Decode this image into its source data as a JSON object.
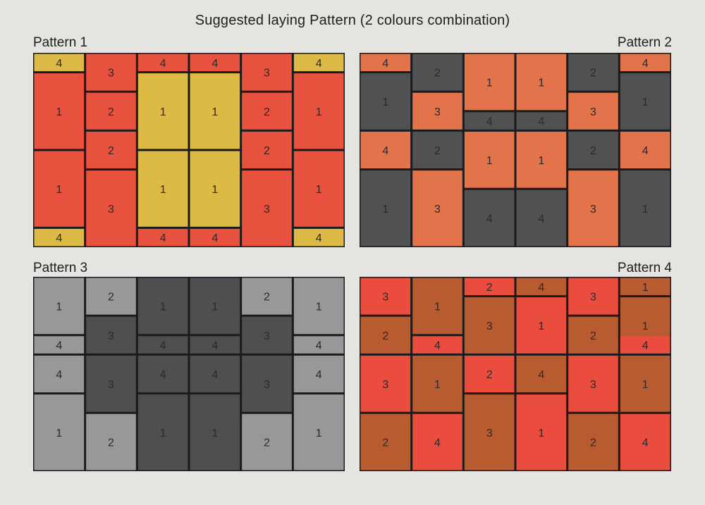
{
  "title": "Suggested laying Pattern (2 colours combination)",
  "colors": {
    "joint": "#1b1b1b",
    "red": "#e9513f",
    "yellow": "#dcba45",
    "orange": "#e2734a",
    "charcoal": "#4f5152",
    "light_grey": "#979899",
    "dark_grey": "#4e4f50",
    "rust": "#b85b31",
    "red_bright": "#ea4c3d"
  },
  "patterns": [
    {
      "label": "Pattern 1",
      "cells": [
        {
          "c": 0,
          "r": 0,
          "w": 1,
          "h": 1,
          "n": "4",
          "col": "yellow"
        },
        {
          "c": 0,
          "r": 1,
          "w": 1,
          "h": 4,
          "n": "1",
          "col": "red"
        },
        {
          "c": 0,
          "r": 5,
          "w": 1,
          "h": 4,
          "n": "1",
          "col": "red"
        },
        {
          "c": 0,
          "r": 9,
          "w": 1,
          "h": 1,
          "n": "4",
          "col": "yellow"
        },
        {
          "c": 1,
          "r": 0,
          "w": 1,
          "h": 2,
          "n": "3",
          "col": "red"
        },
        {
          "c": 1,
          "r": 2,
          "w": 1,
          "h": 2,
          "n": "2",
          "col": "red"
        },
        {
          "c": 1,
          "r": 4,
          "w": 1,
          "h": 2,
          "n": "2",
          "col": "red"
        },
        {
          "c": 1,
          "r": 6,
          "w": 1,
          "h": 4,
          "n": "3",
          "col": "red"
        },
        {
          "c": 2,
          "r": 0,
          "w": 1,
          "h": 1,
          "n": "4",
          "col": "red"
        },
        {
          "c": 2,
          "r": 1,
          "w": 1,
          "h": 4,
          "n": "1",
          "col": "yellow"
        },
        {
          "c": 2,
          "r": 5,
          "w": 1,
          "h": 4,
          "n": "1",
          "col": "yellow"
        },
        {
          "c": 2,
          "r": 9,
          "w": 1,
          "h": 1,
          "n": "4",
          "col": "red"
        },
        {
          "c": 3,
          "r": 0,
          "w": 1,
          "h": 1,
          "n": "4",
          "col": "red"
        },
        {
          "c": 3,
          "r": 1,
          "w": 1,
          "h": 4,
          "n": "1",
          "col": "yellow"
        },
        {
          "c": 3,
          "r": 5,
          "w": 1,
          "h": 4,
          "n": "1",
          "col": "yellow"
        },
        {
          "c": 3,
          "r": 9,
          "w": 1,
          "h": 1,
          "n": "4",
          "col": "red"
        },
        {
          "c": 4,
          "r": 0,
          "w": 1,
          "h": 2,
          "n": "3",
          "col": "red"
        },
        {
          "c": 4,
          "r": 2,
          "w": 1,
          "h": 2,
          "n": "2",
          "col": "red"
        },
        {
          "c": 4,
          "r": 4,
          "w": 1,
          "h": 2,
          "n": "2",
          "col": "red"
        },
        {
          "c": 4,
          "r": 6,
          "w": 1,
          "h": 4,
          "n": "3",
          "col": "red"
        },
        {
          "c": 5,
          "r": 0,
          "w": 1,
          "h": 1,
          "n": "4",
          "col": "yellow"
        },
        {
          "c": 5,
          "r": 1,
          "w": 1,
          "h": 4,
          "n": "1",
          "col": "red"
        },
        {
          "c": 5,
          "r": 5,
          "w": 1,
          "h": 4,
          "n": "1",
          "col": "red"
        },
        {
          "c": 5,
          "r": 9,
          "w": 1,
          "h": 1,
          "n": "4",
          "col": "yellow"
        }
      ]
    },
    {
      "label": "Pattern 2",
      "cells": [
        {
          "c": 0,
          "r": 0,
          "w": 1,
          "h": 1,
          "n": "4",
          "col": "orange"
        },
        {
          "c": 0,
          "r": 1,
          "w": 1,
          "h": 3,
          "n": "1",
          "col": "charcoal"
        },
        {
          "c": 0,
          "r": 4,
          "w": 1,
          "h": 2,
          "n": "4",
          "col": "orange"
        },
        {
          "c": 0,
          "r": 6,
          "w": 1,
          "h": 4,
          "n": "1",
          "col": "charcoal"
        },
        {
          "c": 1,
          "r": 0,
          "w": 1,
          "h": 2,
          "n": "2",
          "col": "charcoal"
        },
        {
          "c": 1,
          "r": 2,
          "w": 1,
          "h": 2,
          "n": "3",
          "col": "orange"
        },
        {
          "c": 1,
          "r": 4,
          "w": 1,
          "h": 2,
          "n": "2",
          "col": "charcoal"
        },
        {
          "c": 1,
          "r": 6,
          "w": 1,
          "h": 4,
          "n": "3",
          "col": "orange"
        },
        {
          "c": 2,
          "r": 0,
          "w": 1,
          "h": 3,
          "n": "1",
          "col": "orange"
        },
        {
          "c": 2,
          "r": 3,
          "w": 1,
          "h": 1,
          "n": "4",
          "col": "charcoal"
        },
        {
          "c": 2,
          "r": 4,
          "w": 1,
          "h": 3,
          "n": "1",
          "col": "orange"
        },
        {
          "c": 2,
          "r": 7,
          "w": 1,
          "h": 3,
          "n": "4",
          "col": "charcoal"
        },
        {
          "c": 3,
          "r": 0,
          "w": 1,
          "h": 3,
          "n": "1",
          "col": "orange"
        },
        {
          "c": 3,
          "r": 3,
          "w": 1,
          "h": 1,
          "n": "4",
          "col": "charcoal"
        },
        {
          "c": 3,
          "r": 4,
          "w": 1,
          "h": 3,
          "n": "1",
          "col": "orange"
        },
        {
          "c": 3,
          "r": 7,
          "w": 1,
          "h": 3,
          "n": "4",
          "col": "charcoal"
        },
        {
          "c": 4,
          "r": 0,
          "w": 1,
          "h": 2,
          "n": "2",
          "col": "charcoal"
        },
        {
          "c": 4,
          "r": 2,
          "w": 1,
          "h": 2,
          "n": "3",
          "col": "orange"
        },
        {
          "c": 4,
          "r": 4,
          "w": 1,
          "h": 2,
          "n": "2",
          "col": "charcoal"
        },
        {
          "c": 4,
          "r": 6,
          "w": 1,
          "h": 4,
          "n": "3",
          "col": "orange"
        },
        {
          "c": 5,
          "r": 0,
          "w": 1,
          "h": 1,
          "n": "4",
          "col": "orange"
        },
        {
          "c": 5,
          "r": 1,
          "w": 1,
          "h": 3,
          "n": "1",
          "col": "charcoal"
        },
        {
          "c": 5,
          "r": 4,
          "w": 1,
          "h": 2,
          "n": "4",
          "col": "orange"
        },
        {
          "c": 5,
          "r": 6,
          "w": 1,
          "h": 4,
          "n": "1",
          "col": "charcoal"
        }
      ]
    },
    {
      "label": "Pattern 3",
      "cells": [
        {
          "c": 0,
          "r": 0,
          "w": 1,
          "h": 3,
          "n": "1",
          "col": "light_grey"
        },
        {
          "c": 0,
          "r": 3,
          "w": 1,
          "h": 1,
          "n": "4",
          "col": "light_grey"
        },
        {
          "c": 0,
          "r": 4,
          "w": 1,
          "h": 2,
          "n": "4",
          "col": "light_grey"
        },
        {
          "c": 0,
          "r": 6,
          "w": 1,
          "h": 4,
          "n": "1",
          "col": "light_grey"
        },
        {
          "c": 1,
          "r": 0,
          "w": 1,
          "h": 2,
          "n": "2",
          "col": "light_grey"
        },
        {
          "c": 1,
          "r": 2,
          "w": 1,
          "h": 2,
          "n": "3",
          "col": "dark_grey"
        },
        {
          "c": 1,
          "r": 4,
          "w": 1,
          "h": 3,
          "n": "3",
          "col": "dark_grey"
        },
        {
          "c": 1,
          "r": 7,
          "w": 1,
          "h": 3,
          "n": "2",
          "col": "light_grey"
        },
        {
          "c": 2,
          "r": 0,
          "w": 1,
          "h": 3,
          "n": "1",
          "col": "dark_grey"
        },
        {
          "c": 2,
          "r": 3,
          "w": 1,
          "h": 1,
          "n": "4",
          "col": "dark_grey"
        },
        {
          "c": 2,
          "r": 4,
          "w": 1,
          "h": 2,
          "n": "4",
          "col": "dark_grey"
        },
        {
          "c": 2,
          "r": 6,
          "w": 1,
          "h": 4,
          "n": "1",
          "col": "dark_grey"
        },
        {
          "c": 3,
          "r": 0,
          "w": 1,
          "h": 3,
          "n": "1",
          "col": "dark_grey"
        },
        {
          "c": 3,
          "r": 3,
          "w": 1,
          "h": 1,
          "n": "4",
          "col": "dark_grey"
        },
        {
          "c": 3,
          "r": 4,
          "w": 1,
          "h": 2,
          "n": "4",
          "col": "dark_grey"
        },
        {
          "c": 3,
          "r": 6,
          "w": 1,
          "h": 4,
          "n": "1",
          "col": "dark_grey"
        },
        {
          "c": 4,
          "r": 0,
          "w": 1,
          "h": 2,
          "n": "2",
          "col": "light_grey"
        },
        {
          "c": 4,
          "r": 2,
          "w": 1,
          "h": 2,
          "n": "3",
          "col": "dark_grey"
        },
        {
          "c": 4,
          "r": 4,
          "w": 1,
          "h": 3,
          "n": "3",
          "col": "dark_grey"
        },
        {
          "c": 4,
          "r": 7,
          "w": 1,
          "h": 3,
          "n": "2",
          "col": "light_grey"
        },
        {
          "c": 5,
          "r": 0,
          "w": 1,
          "h": 3,
          "n": "1",
          "col": "light_grey"
        },
        {
          "c": 5,
          "r": 3,
          "w": 1,
          "h": 1,
          "n": "4",
          "col": "light_grey"
        },
        {
          "c": 5,
          "r": 4,
          "w": 1,
          "h": 2,
          "n": "4",
          "col": "light_grey"
        },
        {
          "c": 5,
          "r": 6,
          "w": 1,
          "h": 4,
          "n": "1",
          "col": "light_grey"
        }
      ]
    },
    {
      "label": "Pattern 4",
      "cells": [
        {
          "c": 0,
          "r": 0,
          "w": 1,
          "h": 2,
          "n": "3",
          "col": "red_bright"
        },
        {
          "c": 0,
          "r": 2,
          "w": 1,
          "h": 2,
          "n": "2",
          "col": "rust"
        },
        {
          "c": 0,
          "r": 4,
          "w": 1,
          "h": 3,
          "n": "3",
          "col": "red_bright"
        },
        {
          "c": 0,
          "r": 7,
          "w": 1,
          "h": 3,
          "n": "2",
          "col": "rust"
        },
        {
          "c": 1,
          "r": 0,
          "w": 1,
          "h": 3,
          "n": "1",
          "col": "rust"
        },
        {
          "c": 1,
          "r": 3,
          "w": 1,
          "h": 1,
          "n": "4",
          "col": "red_bright"
        },
        {
          "c": 1,
          "r": 4,
          "w": 1,
          "h": 3,
          "n": "1",
          "col": "rust"
        },
        {
          "c": 1,
          "r": 7,
          "w": 1,
          "h": 3,
          "n": "4",
          "col": "red_bright"
        },
        {
          "c": 2,
          "r": 0,
          "w": 1,
          "h": 1,
          "n": "2",
          "col": "red_bright"
        },
        {
          "c": 2,
          "r": 1,
          "w": 1,
          "h": 3,
          "n": "3",
          "col": "rust"
        },
        {
          "c": 2,
          "r": 4,
          "w": 1,
          "h": 2,
          "n": "2",
          "col": "red_bright"
        },
        {
          "c": 2,
          "r": 6,
          "w": 1,
          "h": 4,
          "n": "3",
          "col": "rust"
        },
        {
          "c": 3,
          "r": 0,
          "w": 1,
          "h": 1,
          "n": "4",
          "col": "rust"
        },
        {
          "c": 3,
          "r": 1,
          "w": 1,
          "h": 3,
          "n": "1",
          "col": "red_bright"
        },
        {
          "c": 3,
          "r": 4,
          "w": 1,
          "h": 2,
          "n": "4",
          "col": "rust"
        },
        {
          "c": 3,
          "r": 6,
          "w": 1,
          "h": 4,
          "n": "1",
          "col": "red_bright"
        },
        {
          "c": 4,
          "r": 0,
          "w": 1,
          "h": 2,
          "n": "3",
          "col": "red_bright"
        },
        {
          "c": 4,
          "r": 2,
          "w": 1,
          "h": 2,
          "n": "2",
          "col": "rust"
        },
        {
          "c": 4,
          "r": 4,
          "w": 1,
          "h": 3,
          "n": "3",
          "col": "red_bright"
        },
        {
          "c": 4,
          "r": 7,
          "w": 1,
          "h": 3,
          "n": "2",
          "col": "rust"
        },
        {
          "c": 5,
          "r": 0,
          "w": 1,
          "h": 1,
          "n": "1",
          "col": "rust"
        },
        {
          "c": 5,
          "r": 1,
          "w": 1,
          "h": 3,
          "n": "1",
          "col": "rust"
        },
        {
          "c": 5,
          "r": 3,
          "w": 1,
          "h": 1,
          "n": "4",
          "col": "red_bright"
        },
        {
          "c": 5,
          "r": 4,
          "w": 1,
          "h": 3,
          "n": "1",
          "col": "rust"
        },
        {
          "c": 5,
          "r": 7,
          "w": 1,
          "h": 3,
          "n": "4",
          "col": "red_bright"
        }
      ]
    }
  ]
}
